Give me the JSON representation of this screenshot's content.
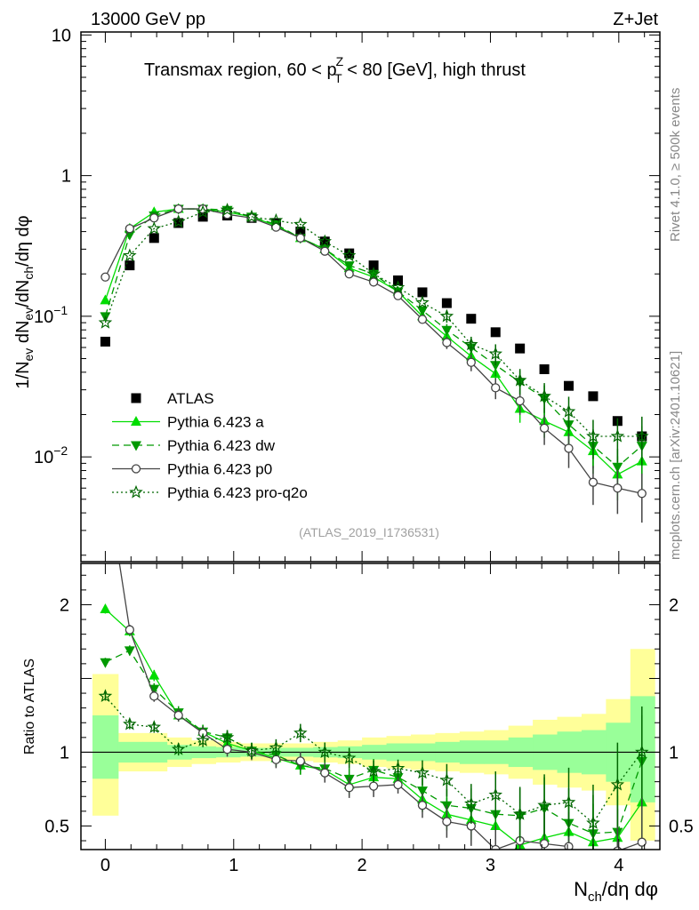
{
  "header": {
    "left": "13000 GeV pp",
    "right": "Z+Jet"
  },
  "side": {
    "rivet": "Rivet 4.1.0, ≥ 500k events",
    "mcplots": "mcplots.cern.ch [arXiv:2401.10621]"
  },
  "watermark": "(ATLAS_2019_I1736531)",
  "colors": {
    "atlas": "#000000",
    "a": "#00dd00",
    "dw": "#009900",
    "p0": "#444444",
    "pro": "#006600",
    "band_yellow": "#ffff99",
    "band_green": "#99ff99"
  },
  "chart_data": [
    {
      "type": "line",
      "panel": "main",
      "title": "Transmax region, 60 < p_T^Z < 80 [GeV], high thrust",
      "title_parts": [
        "Transmax region, 60 < p",
        "Z",
        "T",
        " < 80 [GeV], high thrust"
      ],
      "ylabel": "1/N_ev dN_ev/dN_ch/dη dφ",
      "yscale": "log",
      "ylim": [
        0.0018,
        10.5
      ],
      "xlim": [
        -0.19,
        4.32
      ],
      "yticks": [
        {
          "v": 10,
          "label": "10"
        },
        {
          "v": 1,
          "label": "1"
        },
        {
          "v": 0.1,
          "label": "10",
          "exp": "−1"
        },
        {
          "v": 0.01,
          "label": "10",
          "exp": "−2"
        }
      ],
      "x": [
        0.0,
        0.19,
        0.38,
        0.57,
        0.76,
        0.95,
        1.14,
        1.33,
        1.52,
        1.71,
        1.9,
        2.09,
        2.28,
        2.47,
        2.66,
        2.85,
        3.04,
        3.23,
        3.42,
        3.61,
        3.8,
        3.99,
        4.18
      ],
      "series": [
        {
          "name": "ATLAS",
          "key": "atlas",
          "marker": "square",
          "values": [
            0.066,
            0.23,
            0.36,
            0.46,
            0.51,
            0.52,
            0.5,
            0.46,
            0.4,
            0.34,
            0.28,
            0.23,
            0.18,
            0.148,
            0.124,
            0.096,
            0.077,
            0.059,
            0.042,
            0.032,
            0.027,
            0.018,
            0.014
          ]
        },
        {
          "name": "Pythia 6.423 a",
          "key": "a",
          "marker": "triangle-up",
          "dash": "",
          "values": [
            0.13,
            0.42,
            0.55,
            0.58,
            0.58,
            0.55,
            0.51,
            0.44,
            0.36,
            0.3,
            0.22,
            0.19,
            0.15,
            0.1,
            0.072,
            0.052,
            0.039,
            0.022,
            0.018,
            0.015,
            0.011,
            0.0075,
            0.0093
          ]
        },
        {
          "name": "Pythia 6.423 dw",
          "key": "dw",
          "marker": "triangle-down",
          "dash": "8,5",
          "values": [
            0.1,
            0.38,
            0.52,
            0.58,
            0.58,
            0.57,
            0.51,
            0.45,
            0.36,
            0.3,
            0.23,
            0.2,
            0.15,
            0.11,
            0.08,
            0.06,
            0.045,
            0.034,
            0.026,
            0.017,
            0.012,
            0.0085,
            0.012
          ]
        },
        {
          "name": "Pythia 6.423 p0",
          "key": "p0",
          "marker": "circle-open",
          "dash": "",
          "values": [
            0.19,
            0.42,
            0.5,
            0.58,
            0.58,
            0.53,
            0.5,
            0.43,
            0.36,
            0.29,
            0.2,
            0.175,
            0.14,
            0.095,
            0.065,
            0.047,
            0.031,
            0.025,
            0.016,
            0.0115,
            0.0066,
            0.006,
            0.0055
          ]
        },
        {
          "name": "Pythia 6.423 pro-q2o",
          "key": "pro",
          "marker": "star",
          "dash": "2,3",
          "values": [
            0.09,
            0.27,
            0.42,
            0.47,
            0.55,
            0.57,
            0.51,
            0.48,
            0.45,
            0.34,
            0.27,
            0.2,
            0.16,
            0.125,
            0.1,
            0.063,
            0.054,
            0.035,
            0.027,
            0.021,
            0.014,
            0.014,
            0.014
          ]
        }
      ]
    },
    {
      "type": "line",
      "panel": "ratio",
      "ylabel": "Ratio to ATLAS",
      "xlabel": "N_ch/dη dφ",
      "xlabel_parts": [
        "N",
        "ch",
        "/dη dφ"
      ],
      "ylim": [
        0.34,
        2.28
      ],
      "xlim": [
        -0.19,
        4.32
      ],
      "yticks": [
        0.5,
        1,
        2
      ],
      "xticks": [
        0,
        1,
        2,
        3,
        4
      ],
      "band_edges": [
        -0.1,
        0.1,
        0.29,
        0.48,
        0.67,
        0.86,
        1.05,
        1.24,
        1.43,
        1.62,
        1.81,
        2.0,
        2.19,
        2.38,
        2.57,
        2.76,
        2.95,
        3.14,
        3.33,
        3.52,
        3.71,
        3.9,
        4.09,
        4.28
      ],
      "band_yellow": [
        [
          0.57,
          1.53
        ],
        [
          0.87,
          1.13
        ],
        [
          0.87,
          1.13
        ],
        [
          0.9,
          1.1
        ],
        [
          0.92,
          1.08
        ],
        [
          0.93,
          1.07
        ],
        [
          0.94,
          1.06
        ],
        [
          0.94,
          1.06
        ],
        [
          0.94,
          1.06
        ],
        [
          0.93,
          1.07
        ],
        [
          0.92,
          1.08
        ],
        [
          0.9,
          1.1
        ],
        [
          0.89,
          1.11
        ],
        [
          0.88,
          1.12
        ],
        [
          0.87,
          1.13
        ],
        [
          0.86,
          1.14
        ],
        [
          0.85,
          1.15
        ],
        [
          0.82,
          1.18
        ],
        [
          0.78,
          1.22
        ],
        [
          0.76,
          1.24
        ],
        [
          0.74,
          1.26
        ],
        [
          0.64,
          1.36
        ],
        [
          0.4,
          1.7
        ]
      ],
      "band_green": [
        [
          0.82,
          1.25
        ],
        [
          0.93,
          1.07
        ],
        [
          0.93,
          1.07
        ],
        [
          0.95,
          1.05
        ],
        [
          0.96,
          1.04
        ],
        [
          0.965,
          1.035
        ],
        [
          0.97,
          1.03
        ],
        [
          0.97,
          1.03
        ],
        [
          0.97,
          1.03
        ],
        [
          0.965,
          1.035
        ],
        [
          0.96,
          1.04
        ],
        [
          0.95,
          1.05
        ],
        [
          0.94,
          1.06
        ],
        [
          0.94,
          1.06
        ],
        [
          0.93,
          1.07
        ],
        [
          0.92,
          1.08
        ],
        [
          0.92,
          1.08
        ],
        [
          0.9,
          1.1
        ],
        [
          0.88,
          1.12
        ],
        [
          0.86,
          1.14
        ],
        [
          0.85,
          1.15
        ],
        [
          0.8,
          1.2
        ],
        [
          0.66,
          1.38
        ]
      ],
      "series": [
        {
          "key": "a",
          "values": [
            1.97,
            1.82,
            1.52,
            1.25,
            1.14,
            1.06,
            1.01,
            0.96,
            0.91,
            0.88,
            0.78,
            0.83,
            0.82,
            0.68,
            0.58,
            0.54,
            0.5,
            0.37,
            0.42,
            0.46,
            0.39,
            0.42,
            0.66
          ]
        },
        {
          "key": "dw",
          "values": [
            1.61,
            1.69,
            1.43,
            1.27,
            1.14,
            1.1,
            1.01,
            0.98,
            0.91,
            0.89,
            0.82,
            0.88,
            0.83,
            0.74,
            0.64,
            0.62,
            0.58,
            0.57,
            0.62,
            0.52,
            0.45,
            0.46,
            0.94
          ]
        },
        {
          "key": "p0",
          "values": [
            2.9,
            1.83,
            1.38,
            1.25,
            1.13,
            1.02,
            1.0,
            0.95,
            0.94,
            0.86,
            0.76,
            0.77,
            0.78,
            0.64,
            0.53,
            0.5,
            0.34,
            0.4,
            0.38,
            0.36,
            0.24,
            0.33,
            0.39
          ]
        },
        {
          "key": "pro",
          "values": [
            1.38,
            1.19,
            1.17,
            1.02,
            1.08,
            1.1,
            1.01,
            1.03,
            1.13,
            1.0,
            0.96,
            0.87,
            0.89,
            0.86,
            0.81,
            0.65,
            0.71,
            0.58,
            0.64,
            0.66,
            0.52,
            0.78,
            1.0
          ]
        }
      ]
    }
  ]
}
